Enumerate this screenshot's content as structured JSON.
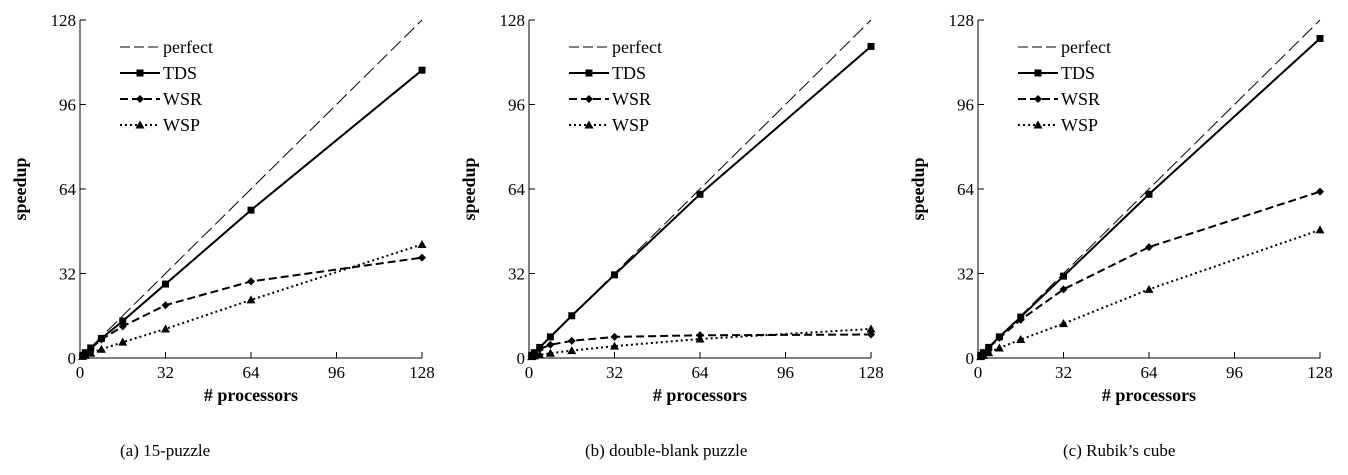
{
  "chart_data": [
    {
      "type": "line",
      "caption": "(a) 15-puzzle",
      "xlabel": "# processors",
      "ylabel": "speedup",
      "xlim": [
        0,
        128
      ],
      "ylim": [
        0,
        128
      ],
      "xticks": [
        0,
        32,
        64,
        96,
        128
      ],
      "yticks": [
        0,
        32,
        64,
        96,
        128
      ],
      "grid": false,
      "legend_position": "top-left",
      "series": [
        {
          "name": "perfect",
          "style": "dashed-thin",
          "marker": "none",
          "x": [
            0,
            128
          ],
          "y": [
            0,
            128
          ]
        },
        {
          "name": "TDS",
          "style": "solid",
          "marker": "square",
          "x": [
            1,
            2,
            4,
            8,
            16,
            32,
            64,
            128
          ],
          "y": [
            1,
            2,
            3.8,
            7.4,
            14,
            28,
            56,
            109
          ]
        },
        {
          "name": "WSR",
          "style": "dashed",
          "marker": "diamond",
          "x": [
            1,
            2,
            4,
            8,
            16,
            32,
            64,
            128
          ],
          "y": [
            1,
            1.9,
            3.6,
            7,
            12,
            20,
            29,
            38
          ]
        },
        {
          "name": "WSP",
          "style": "dotted",
          "marker": "triangle",
          "x": [
            1,
            2,
            4,
            8,
            16,
            32,
            64,
            128
          ],
          "y": [
            0.6,
            1,
            1.8,
            3.3,
            6,
            11,
            22,
            43
          ]
        }
      ]
    },
    {
      "type": "line",
      "caption": "(b) double-blank puzzle",
      "xlabel": "# processors",
      "ylabel": "speedup",
      "xlim": [
        0,
        128
      ],
      "ylim": [
        0,
        128
      ],
      "xticks": [
        0,
        32,
        64,
        96,
        128
      ],
      "yticks": [
        0,
        32,
        64,
        96,
        128
      ],
      "grid": false,
      "legend_position": "top-left",
      "series": [
        {
          "name": "perfect",
          "style": "dashed-thin",
          "marker": "none",
          "x": [
            0,
            128
          ],
          "y": [
            0,
            128
          ]
        },
        {
          "name": "TDS",
          "style": "solid",
          "marker": "square",
          "x": [
            1,
            2,
            4,
            8,
            16,
            32,
            64,
            128
          ],
          "y": [
            1,
            2,
            4,
            8,
            16,
            31.5,
            62,
            118
          ]
        },
        {
          "name": "WSR",
          "style": "dashed",
          "marker": "diamond",
          "x": [
            1,
            2,
            4,
            8,
            16,
            32,
            64,
            128
          ],
          "y": [
            1,
            1.9,
            3.4,
            5,
            6.5,
            8,
            8.6,
            8.9
          ]
        },
        {
          "name": "WSP",
          "style": "dotted",
          "marker": "triangle",
          "x": [
            1,
            2,
            4,
            8,
            16,
            32,
            64,
            128
          ],
          "y": [
            0.5,
            0.8,
            1.2,
            1.8,
            2.8,
            4.5,
            7.2,
            11
          ]
        }
      ]
    },
    {
      "type": "line",
      "caption": "(c) Rubik’s cube",
      "xlabel": "# processors",
      "ylabel": "speedup",
      "xlim": [
        0,
        128
      ],
      "ylim": [
        0,
        128
      ],
      "xticks": [
        0,
        32,
        64,
        96,
        128
      ],
      "yticks": [
        0,
        32,
        64,
        96,
        128
      ],
      "grid": false,
      "legend_position": "top-left",
      "series": [
        {
          "name": "perfect",
          "style": "dashed-thin",
          "marker": "none",
          "x": [
            0,
            128
          ],
          "y": [
            0,
            128
          ]
        },
        {
          "name": "TDS",
          "style": "solid",
          "marker": "square",
          "x": [
            1,
            2,
            4,
            8,
            16,
            32,
            64,
            128
          ],
          "y": [
            1,
            2,
            4,
            8,
            15.5,
            31,
            62,
            121
          ]
        },
        {
          "name": "WSR",
          "style": "dashed",
          "marker": "diamond",
          "x": [
            1,
            2,
            4,
            8,
            16,
            32,
            64,
            128
          ],
          "y": [
            1,
            2,
            3.9,
            7.6,
            14.5,
            26,
            42,
            63
          ]
        },
        {
          "name": "WSP",
          "style": "dotted",
          "marker": "triangle",
          "x": [
            1,
            2,
            4,
            8,
            16,
            32,
            64,
            128
          ],
          "y": [
            0.5,
            1,
            2,
            3.8,
            7,
            13,
            26,
            48.5
          ]
        }
      ]
    }
  ]
}
